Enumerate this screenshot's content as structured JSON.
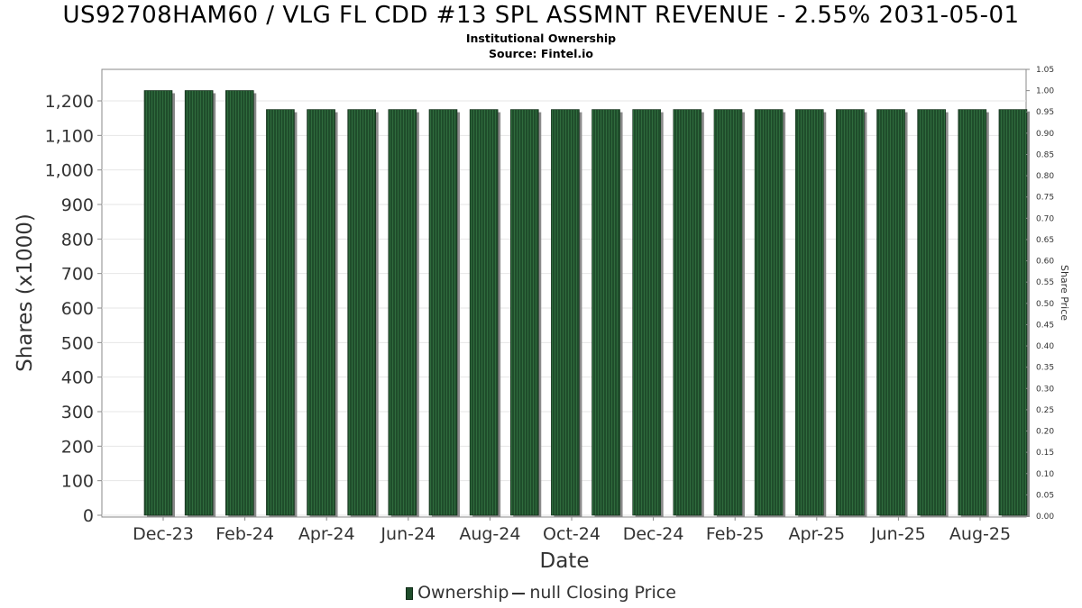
{
  "title": "US92708HAM60 / VLG FL CDD #13 SPL ASSMNT REVENUE - 2.55% 2031-05-01",
  "subtitle_line1": "Institutional Ownership",
  "subtitle_line2": "Source: Fintel.io",
  "legend": {
    "ownership_label": "Ownership",
    "price_label": "null Closing Price"
  },
  "colors": {
    "bar_fill": "#1f4d2b",
    "bar_stripe": "#2f6b3d",
    "bar_shadow": "#8a8a8a",
    "grid": "#e6e6e6"
  },
  "chart_data": {
    "type": "bar",
    "title": "US92708HAM60 / VLG FL CDD #13 SPL ASSMNT REVENUE - 2.55% 2031-05-01",
    "xlabel": "Date",
    "ylabel": "Shares (x1000)",
    "ylabel_right": "Share Price",
    "ylim": [
      0,
      1250
    ],
    "ylim_right": [
      0,
      1.05
    ],
    "grid": true,
    "legend_position": "bottom",
    "y_ticks": [
      "0",
      "100",
      "200",
      "300",
      "400",
      "500",
      "600",
      "700",
      "800",
      "900",
      "1,000",
      "1,100",
      "1,200"
    ],
    "y_ticks_right": [
      "0.00",
      "0.05",
      "0.10",
      "0.15",
      "0.20",
      "0.25",
      "0.30",
      "0.35",
      "0.40",
      "0.45",
      "0.50",
      "0.55",
      "0.60",
      "0.65",
      "0.70",
      "0.75",
      "0.80",
      "0.85",
      "0.90",
      "0.95",
      "1.00",
      "1.05"
    ],
    "x_tick_labels": [
      "Dec-23",
      "Feb-24",
      "Apr-24",
      "Jun-24",
      "Aug-24",
      "Oct-24",
      "Dec-24",
      "Feb-25",
      "Apr-25",
      "Jun-25",
      "Aug-25"
    ],
    "series": [
      {
        "name": "Ownership",
        "values": [
          1230,
          1230,
          1230,
          1175,
          1175,
          1175,
          1175,
          1175,
          1175,
          1175,
          1175,
          1175,
          1175,
          1175,
          1175,
          1175,
          1175,
          1175,
          1175,
          1175,
          1175,
          1175
        ]
      }
    ]
  }
}
